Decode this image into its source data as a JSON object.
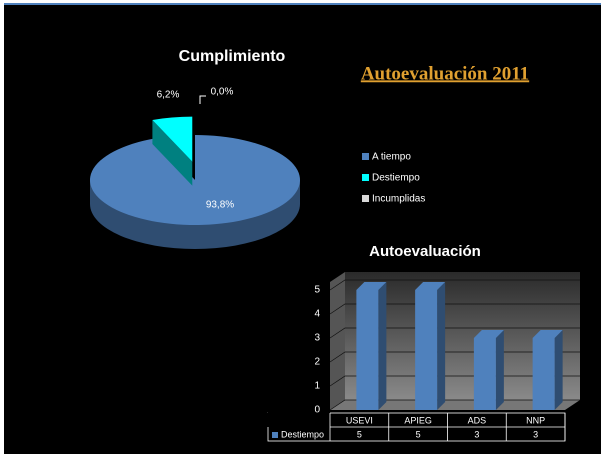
{
  "title": "Autoevaluación 2011",
  "chart_data": [
    {
      "type": "pie",
      "title": "Cumplimiento",
      "categories": [
        "A tiempo",
        "Destiempo",
        "Incumplidas"
      ],
      "values": [
        93.8,
        6.2,
        0.0
      ],
      "value_labels": [
        "93,8%",
        "6,2%",
        "0,0%"
      ],
      "colors": [
        "#4f81bd",
        "#00ffff",
        "#d9d9d9"
      ]
    },
    {
      "type": "bar",
      "title": "Autoevaluación",
      "categories": [
        "USEVI",
        "APIEG",
        "ADS",
        "NNP"
      ],
      "series": [
        {
          "name": "Destiempo",
          "color": "#4f81bd",
          "values": [
            5,
            5,
            3,
            3
          ]
        }
      ],
      "ylim": [
        0,
        5
      ],
      "yticks": [
        0,
        1,
        2,
        3,
        4,
        5
      ],
      "grid": true
    }
  ]
}
